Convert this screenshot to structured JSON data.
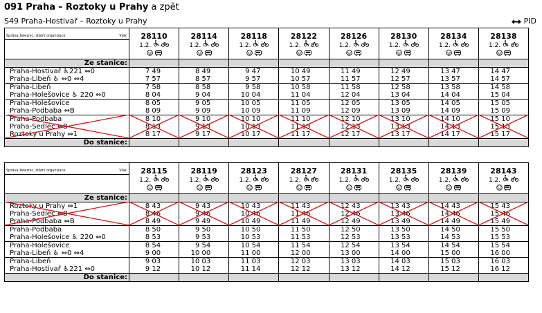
{
  "title": {
    "line": "091",
    "from": "Praha",
    "dash": "–",
    "to": "Roztoky u Prahy",
    "suffix": "a zpět"
  },
  "subtitle": "S49 Praha-Hostivař – Roztoky u Prahy",
  "pid": "PID",
  "header_left": "Správa železnic, státní organizace",
  "header_right": "Vlak",
  "attr_text": "1.2.",
  "from_label": "Ze stanice:",
  "to_label": "Do stanice:",
  "colors": {
    "grey": "#d9d9d9",
    "cross": "#e01010"
  },
  "icons": [
    "wheelchair-icon",
    "bicycle-icon",
    "info-icon",
    "train-icon"
  ],
  "table1": {
    "trains": [
      "28110",
      "28114",
      "28118",
      "28122",
      "28126",
      "28130",
      "28134",
      "28138"
    ],
    "stations": [
      "Praha-Hostivař ♿221 ⇔0",
      "Praha-Libeň ♿ ⇔0 ⇔4",
      "Praha-Libeň",
      "Praha-Holešovice ♿ 220 ⇔0",
      "Praha-Holešovice",
      "Praha-Podbaba ⇔B",
      "Praha-Podbaba",
      "Praha-Sedlec ⇔B",
      "Roztoky u Prahy ⇔1"
    ],
    "times": [
      [
        "7 49",
        "8 49",
        "9 47",
        "10 49",
        "11 49",
        "12 49",
        "13 47",
        "14 47"
      ],
      [
        "7 57",
        "8 57",
        "9 57",
        "10 57",
        "11 57",
        "12 57",
        "13 57",
        "14 57"
      ],
      [
        "7 58",
        "8 58",
        "9 58",
        "10 58",
        "11 58",
        "12 58",
        "13 58",
        "14 58"
      ],
      [
        "8 04",
        "9 04",
        "10 04",
        "11 04",
        "12 04",
        "13 04",
        "14 04",
        "15 04"
      ],
      [
        "8 05",
        "9 05",
        "10 05",
        "11 05",
        "12 05",
        "13 05",
        "14 05",
        "15 05"
      ],
      [
        "8 09",
        "9 09",
        "10 09",
        "11 09",
        "12 09",
        "13 09",
        "14 09",
        "15 09"
      ],
      [
        "8 10",
        "9 10",
        "10 10",
        "11 10",
        "12 10",
        "13 10",
        "14 10",
        "15 10"
      ],
      [
        "8 13",
        "9 13",
        "10 13",
        "11 13",
        "12 13",
        "13 13",
        "14 13",
        "15 13"
      ],
      [
        "8 17",
        "9 17",
        "10 17",
        "11 17",
        "12 17",
        "13 17",
        "14 17",
        "15 17"
      ]
    ]
  },
  "table2": {
    "trains": [
      "28115",
      "28119",
      "28123",
      "28127",
      "28131",
      "28135",
      "28139",
      "28143"
    ],
    "stations": [
      "Roztoky u Prahy ⇔1",
      "Praha-Sedlec ⇔B",
      "Praha-Podbaba ⇔B",
      "Praha-Podbaba",
      "Praha-Holešovice ♿ 220 ⇔0",
      "Praha-Holešovice",
      "Praha-Libeň ♿ ⇔0 ⇔4",
      "Praha-Libeň",
      "Praha-Hostivař ♿221 ⇔0"
    ],
    "times": [
      [
        "8 43",
        "9 43",
        "10 43",
        "11 43",
        "12 43",
        "13 43",
        "14 43",
        "15 43"
      ],
      [
        "8 46",
        "9 46",
        "10 46",
        "11 46",
        "12 46",
        "13 46",
        "14 46",
        "15 46"
      ],
      [
        "8 49",
        "9 49",
        "10 49",
        "11 49",
        "12 49",
        "13 49",
        "14 49",
        "15 49"
      ],
      [
        "8 50",
        "9 50",
        "10 50",
        "11 50",
        "12 50",
        "13 50",
        "14 50",
        "15 50"
      ],
      [
        "8 53",
        "9 53",
        "10 53",
        "11 53",
        "12 53",
        "13 53",
        "14 53",
        "15 53"
      ],
      [
        "8 54",
        "9 54",
        "10 54",
        "11 54",
        "12 54",
        "13 54",
        "14 54",
        "15 54"
      ],
      [
        "9 00",
        "10 00",
        "11 00",
        "12 00",
        "13 00",
        "14 00",
        "15 00",
        "16 00"
      ],
      [
        "9 03",
        "10 03",
        "11 03",
        "12 03",
        "13 03",
        "14 03",
        "15 03",
        "16 03"
      ],
      [
        "9 12",
        "10 12",
        "11 14",
        "12 12",
        "13 12",
        "14 12",
        "15 12",
        "16 12"
      ]
    ]
  }
}
